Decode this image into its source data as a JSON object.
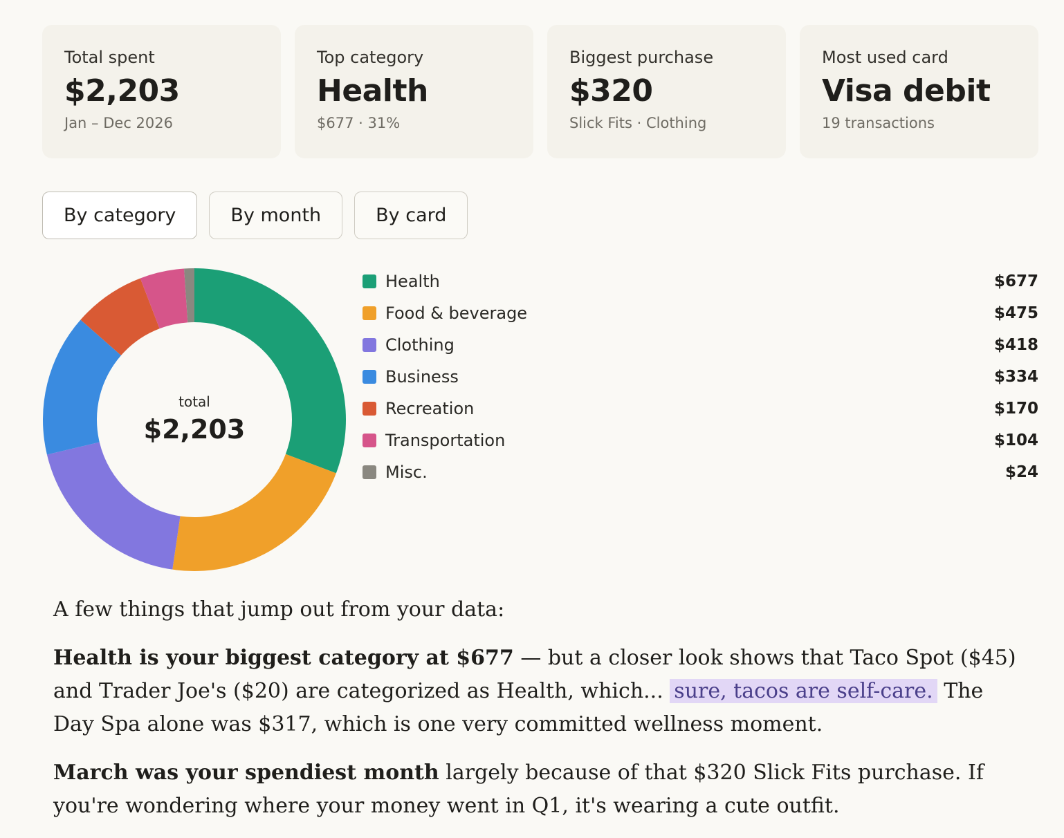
{
  "cards": [
    {
      "label": "Total spent",
      "value": "$2,203",
      "sub": "Jan – Dec 2026"
    },
    {
      "label": "Top category",
      "value": "Health",
      "sub": "$677 · 31%"
    },
    {
      "label": "Biggest purchase",
      "value": "$320",
      "sub": "Slick Fits · Clothing"
    },
    {
      "label": "Most used card",
      "value": "Visa debit",
      "sub": "19 transactions"
    }
  ],
  "tabs": [
    {
      "label": "By category",
      "active": true
    },
    {
      "label": "By month",
      "active": false
    },
    {
      "label": "By card",
      "active": false
    }
  ],
  "chart_data": {
    "type": "pie",
    "donut": true,
    "center_label": "total",
    "center_value": "$2,203",
    "legend_position": "right",
    "slices": [
      {
        "name": "Health",
        "value": 677,
        "display": "$677",
        "color": "#1b9f76"
      },
      {
        "name": "Food & beverage",
        "value": 475,
        "display": "$475",
        "color": "#f0a02a"
      },
      {
        "name": "Clothing",
        "value": 418,
        "display": "$418",
        "color": "#8277df"
      },
      {
        "name": "Business",
        "value": 334,
        "display": "$334",
        "color": "#3a8be0"
      },
      {
        "name": "Recreation",
        "value": 170,
        "display": "$170",
        "color": "#d95a34"
      },
      {
        "name": "Transportation",
        "value": 104,
        "display": "$104",
        "color": "#d6558a"
      },
      {
        "name": "Misc.",
        "value": 24,
        "display": "$24",
        "color": "#8a8880"
      }
    ]
  },
  "insights": {
    "intro": "A few things that jump out from your data:",
    "p1_bold": "Health is your biggest category at $677",
    "p1_a": " — but a closer look shows that Taco Spot ($45) and Trader Joe's ($20) are categorized as Health, which... ",
    "p1_highlight": "sure, tacos are self-care.",
    "p1_b": " The Day Spa alone was $317, which is one very committed wellness moment.",
    "p2_bold": "March was your spendiest month",
    "p2_rest": " largely because of that $320 Slick Fits purchase. If you're wondering where your money went in Q1, it's wearing a cute outfit."
  },
  "colors": {
    "background": "#faf9f5",
    "card": "#f4f2eb",
    "highlight": "#e2d7f6"
  }
}
